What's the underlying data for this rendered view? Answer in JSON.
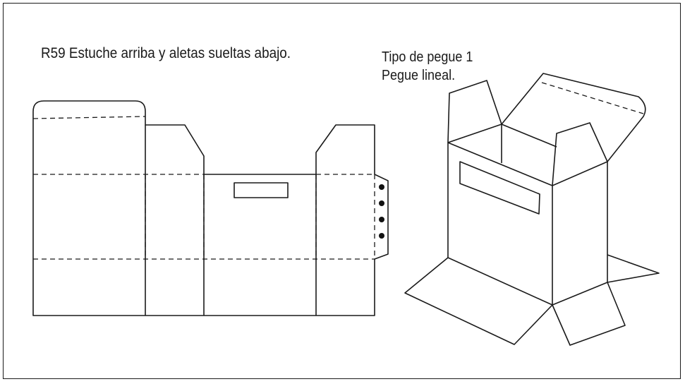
{
  "diagram": {
    "title": "R59 Estuche arriba y aletas sueltas abajo.",
    "glue_type": {
      "line1": "Tipo de pegue 1",
      "line2": "Pegue lineal."
    },
    "glue_dots": 4,
    "colors": {
      "line": "#1a1a1a",
      "background": "#ffffff"
    }
  }
}
